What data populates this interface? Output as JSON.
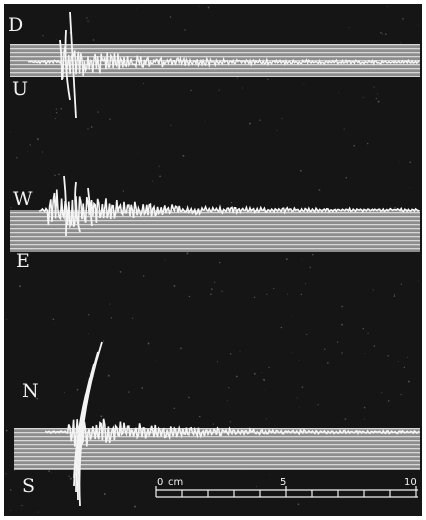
{
  "components": [
    {
      "top": "D",
      "bottom": "U"
    },
    {
      "top": "W",
      "bottom": "E"
    },
    {
      "top": "N",
      "bottom": "S"
    }
  ],
  "scale": {
    "start": "0",
    "unit": "cm",
    "mid": "5",
    "end": "10"
  },
  "colors": {
    "background": "#151515",
    "trace": "#f4f4f4",
    "band": "#8e8e8e",
    "frame": "#ffffff"
  }
}
